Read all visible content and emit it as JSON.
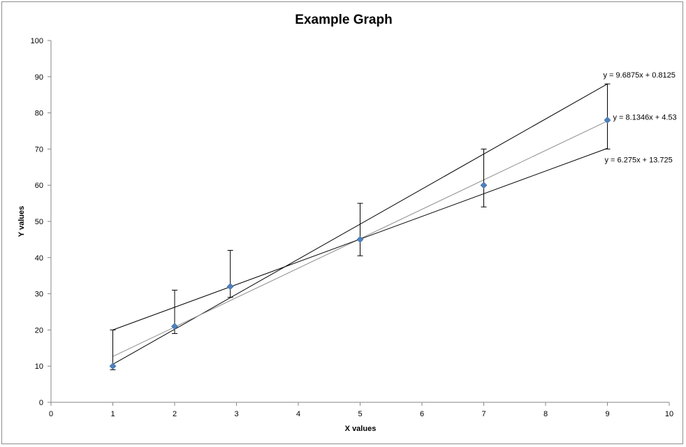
{
  "chart_data": {
    "type": "scatter",
    "title": "Example Graph",
    "xlabel": "X values",
    "ylabel": "Y values",
    "xlim": [
      0,
      10
    ],
    "ylim": [
      0,
      100
    ],
    "x_ticks": [
      0,
      1,
      2,
      3,
      4,
      5,
      6,
      7,
      8,
      9,
      10
    ],
    "y_ticks": [
      0,
      10,
      20,
      30,
      40,
      50,
      60,
      70,
      80,
      90,
      100
    ],
    "grid": false,
    "legend": "none",
    "points": [
      {
        "x": 1,
        "y": 10,
        "err_plus": 10,
        "err_minus": 1
      },
      {
        "x": 2,
        "y": 21,
        "err_plus": 10,
        "err_minus": 2
      },
      {
        "x": 2.9,
        "y": 32,
        "err_plus": 10,
        "err_minus": 3
      },
      {
        "x": 5,
        "y": 45,
        "err_plus": 10,
        "err_minus": 4.5
      },
      {
        "x": 7,
        "y": 60,
        "err_plus": 10,
        "err_minus": 6
      },
      {
        "x": 9,
        "y": 78,
        "err_plus": 10,
        "err_minus": 8
      }
    ],
    "marker_color": "#4f81bd",
    "trendlines": [
      {
        "slope": 9.6875,
        "intercept": 0.8125,
        "x_range": [
          1,
          9
        ],
        "color": "#000000",
        "equation": "y = 9.6875x + 0.8125"
      },
      {
        "slope": 8.1346,
        "intercept": 4.53,
        "x_range": [
          1,
          9
        ],
        "color": "#8c8c8c",
        "equation": "y = 8.1346x + 4.53"
      },
      {
        "slope": 6.275,
        "intercept": 13.725,
        "x_range": [
          1,
          9
        ],
        "color": "#000000",
        "equation": "y = 6.275x + 13.725"
      }
    ]
  }
}
